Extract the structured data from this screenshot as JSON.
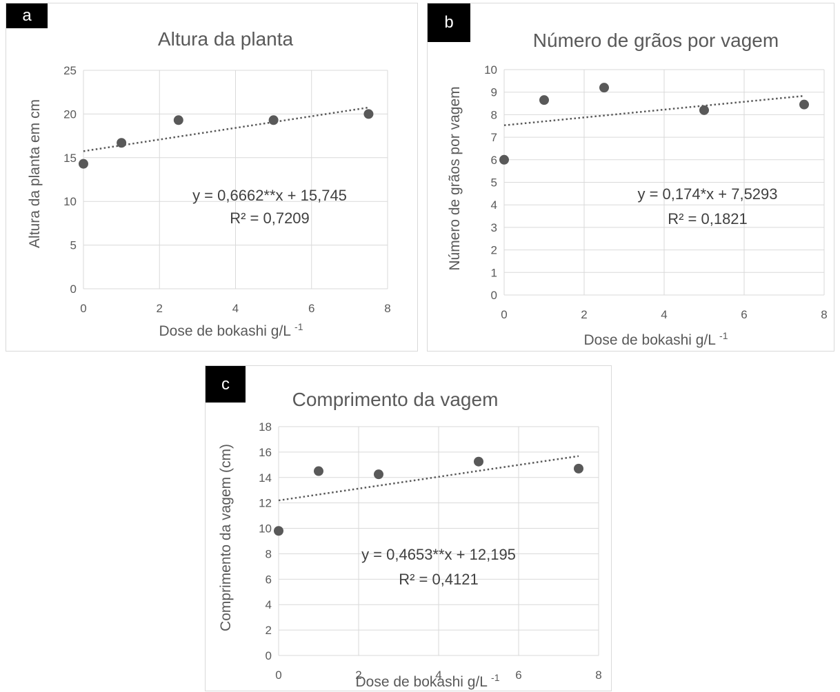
{
  "chart_data": [
    {
      "panel": "a",
      "type": "scatter",
      "title": "Altura da planta",
      "xlabel": "Dose de bokashi g/L",
      "xlabel_sup": "-1",
      "ylabel": "Altura da planta em cm",
      "xlim": [
        0,
        8
      ],
      "ylim": [
        0,
        25
      ],
      "xticks": [
        "0",
        "2",
        "4",
        "6",
        "8"
      ],
      "yticks": [
        "0",
        "5",
        "10",
        "15",
        "20",
        "25"
      ],
      "grid": true,
      "points": [
        [
          0,
          14.3
        ],
        [
          1,
          16.7
        ],
        [
          2.5,
          19.3
        ],
        [
          5,
          19.3
        ],
        [
          7.5,
          20.0
        ]
      ],
      "trendline": {
        "slope": 0.6662,
        "intercept": 15.745,
        "x_range": [
          0,
          7.5
        ]
      },
      "equation": "y = 0,6662**x + 15,745",
      "r2": "R² = 0,7209"
    },
    {
      "panel": "b",
      "type": "scatter",
      "title": "Número de grãos por vagem",
      "xlabel": "Dose de bokashi g/L",
      "xlabel_sup": "-1",
      "ylabel": "Número de grãos por vagem",
      "xlim": [
        0,
        8
      ],
      "ylim": [
        0,
        10
      ],
      "xticks": [
        "0",
        "2",
        "4",
        "6",
        "8"
      ],
      "yticks": [
        "0",
        "1",
        "2",
        "3",
        "4",
        "5",
        "6",
        "7",
        "8",
        "9",
        "10"
      ],
      "grid": true,
      "points": [
        [
          0,
          6.0
        ],
        [
          1,
          8.65
        ],
        [
          2.5,
          9.2
        ],
        [
          5,
          8.2
        ],
        [
          7.5,
          8.45
        ]
      ],
      "trendline": {
        "slope": 0.174,
        "intercept": 7.5293,
        "x_range": [
          0,
          7.5
        ]
      },
      "equation": "y = 0,174*x + 7,5293",
      "r2": "R² = 0,1821"
    },
    {
      "panel": "c",
      "type": "scatter",
      "title": "Comprimento da vagem",
      "xlabel": "Dose de bokashi g/L",
      "xlabel_sup": "-1",
      "ylabel": "Comprimento da vagem (cm)",
      "xlim": [
        0,
        8
      ],
      "ylim": [
        0,
        18
      ],
      "xticks": [
        "0",
        "2",
        "4",
        "6",
        "8"
      ],
      "yticks": [
        "0",
        "2",
        "4",
        "6",
        "8",
        "10",
        "12",
        "14",
        "16",
        "18"
      ],
      "grid": true,
      "points": [
        [
          0,
          9.8
        ],
        [
          1,
          14.5
        ],
        [
          2.5,
          14.25
        ],
        [
          5,
          15.25
        ],
        [
          7.5,
          14.7
        ]
      ],
      "trendline": {
        "slope": 0.4653,
        "intercept": 12.195,
        "x_range": [
          0,
          7.5
        ]
      },
      "equation": "y = 0,4653**x + 12,195",
      "r2": "R² = 0,4121"
    }
  ]
}
